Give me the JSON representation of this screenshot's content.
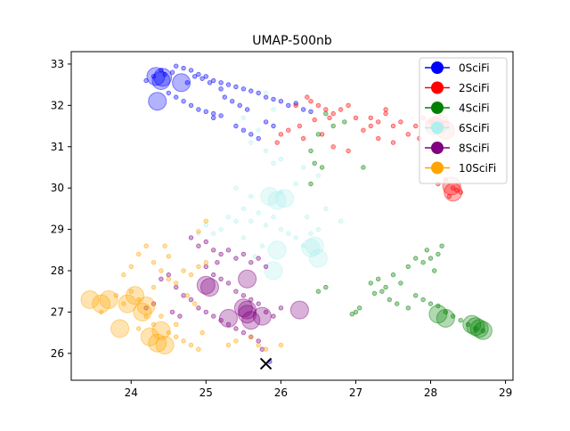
{
  "chart_data": {
    "type": "scatter",
    "title": "UMAP-500nb",
    "xlabel": "",
    "ylabel": "",
    "xlim": [
      23.2,
      29.1
    ],
    "ylim": [
      25.35,
      33.3
    ],
    "xticks": [
      24,
      25,
      26,
      27,
      28,
      29
    ],
    "yticks": [
      26,
      27,
      28,
      29,
      30,
      31,
      32,
      33
    ],
    "grid": false,
    "legend_position": "top-right",
    "series": [
      {
        "name": "0SciFi",
        "color": "#0000ff",
        "points": [
          [
            24.6,
            32.95
          ],
          [
            24.7,
            32.9
          ],
          [
            24.8,
            32.85
          ],
          [
            24.9,
            32.75
          ],
          [
            25.0,
            32.7
          ],
          [
            25.1,
            32.6
          ],
          [
            25.2,
            32.55
          ],
          [
            25.3,
            32.5
          ],
          [
            25.4,
            32.45
          ],
          [
            25.5,
            32.4
          ],
          [
            25.6,
            32.35
          ],
          [
            25.7,
            32.3
          ],
          [
            25.8,
            32.2
          ],
          [
            25.9,
            32.15
          ],
          [
            26.0,
            32.1
          ],
          [
            26.1,
            32.0
          ],
          [
            24.5,
            32.3
          ],
          [
            24.6,
            32.2
          ],
          [
            24.7,
            32.1
          ],
          [
            24.8,
            32.0
          ],
          [
            24.9,
            31.9
          ],
          [
            25.0,
            31.85
          ],
          [
            25.1,
            31.8
          ],
          [
            25.2,
            31.75
          ],
          [
            25.25,
            32.2
          ],
          [
            25.35,
            32.1
          ],
          [
            25.45,
            32.0
          ],
          [
            25.55,
            31.9
          ],
          [
            25.1,
            31.7
          ],
          [
            25.4,
            31.5
          ],
          [
            25.5,
            31.4
          ],
          [
            25.6,
            31.3
          ],
          [
            25.7,
            31.2
          ],
          [
            25.2,
            32.4
          ],
          [
            25.05,
            32.55
          ],
          [
            24.95,
            32.65
          ],
          [
            24.85,
            32.7
          ],
          [
            24.75,
            32.55
          ],
          [
            24.55,
            32.8
          ],
          [
            24.45,
            32.75
          ],
          [
            24.4,
            32.85
          ],
          [
            24.3,
            32.7
          ],
          [
            24.2,
            32.6
          ],
          [
            26.3,
            31.9
          ],
          [
            26.2,
            32.05
          ],
          [
            26.4,
            31.85
          ],
          [
            25.8,
            31.6
          ],
          [
            25.9,
            31.5
          ],
          [
            25.85,
            25.8
          ]
        ],
        "big": [
          [
            24.33,
            32.7
          ],
          [
            24.4,
            32.6
          ],
          [
            24.67,
            32.55
          ],
          [
            24.35,
            32.1
          ],
          [
            24.42,
            32.68
          ]
        ]
      },
      {
        "name": "2SciFi",
        "color": "#ff0000",
        "points": [
          [
            26.2,
            32.0
          ],
          [
            26.4,
            32.1
          ],
          [
            26.5,
            32.0
          ],
          [
            26.6,
            31.9
          ],
          [
            26.7,
            31.8
          ],
          [
            26.8,
            31.9
          ],
          [
            26.9,
            32.0
          ],
          [
            27.0,
            31.7
          ],
          [
            26.35,
            32.2
          ],
          [
            26.25,
            31.5
          ],
          [
            26.1,
            31.4
          ],
          [
            26.3,
            31.2
          ],
          [
            26.55,
            31.3
          ],
          [
            26.7,
            31.0
          ],
          [
            26.9,
            30.9
          ],
          [
            27.2,
            31.5
          ],
          [
            27.3,
            31.6
          ],
          [
            27.4,
            31.8
          ],
          [
            27.5,
            31.5
          ],
          [
            27.6,
            31.6
          ],
          [
            27.7,
            31.3
          ],
          [
            27.8,
            31.5
          ],
          [
            27.9,
            31.7
          ],
          [
            28.0,
            31.6
          ],
          [
            27.85,
            31.2
          ],
          [
            27.5,
            31.1
          ],
          [
            27.3,
            31.2
          ],
          [
            27.1,
            31.4
          ],
          [
            26.0,
            31.3
          ],
          [
            25.95,
            31.1
          ],
          [
            26.45,
            31.65
          ],
          [
            26.65,
            31.7
          ],
          [
            28.2,
            30.2
          ],
          [
            28.3,
            30.0
          ],
          [
            28.4,
            29.9
          ],
          [
            28.1,
            30.1
          ],
          [
            28.25,
            29.8
          ],
          [
            28.35,
            29.95
          ],
          [
            27.4,
            31.9
          ],
          [
            27.2,
            31.7
          ]
        ],
        "big": [
          [
            28.05,
            31.5
          ],
          [
            28.2,
            31.4
          ],
          [
            28.3,
            29.9
          ],
          [
            28.28,
            30.05
          ],
          [
            28.12,
            31.55
          ]
        ]
      },
      {
        "name": "4SciFi",
        "color": "#008000",
        "points": [
          [
            26.6,
            31.8
          ],
          [
            26.7,
            31.5
          ],
          [
            26.85,
            31.6
          ],
          [
            26.5,
            31.3
          ],
          [
            26.4,
            30.9
          ],
          [
            26.45,
            30.6
          ],
          [
            26.4,
            30.1
          ],
          [
            26.55,
            30.5
          ],
          [
            27.1,
            30.5
          ],
          [
            26.5,
            27.5
          ],
          [
            26.6,
            27.6
          ],
          [
            27.0,
            27.0
          ],
          [
            26.95,
            26.95
          ],
          [
            27.05,
            27.1
          ],
          [
            27.2,
            27.7
          ],
          [
            27.3,
            27.8
          ],
          [
            27.4,
            27.6
          ],
          [
            27.5,
            27.9
          ],
          [
            27.6,
            27.7
          ],
          [
            27.7,
            28.1
          ],
          [
            27.8,
            28.3
          ],
          [
            27.9,
            28.2
          ],
          [
            28.0,
            28.3
          ],
          [
            28.1,
            28.4
          ],
          [
            28.15,
            28.6
          ],
          [
            27.45,
            27.3
          ],
          [
            27.55,
            27.2
          ],
          [
            27.7,
            27.1
          ],
          [
            27.8,
            27.4
          ],
          [
            27.9,
            27.3
          ],
          [
            28.0,
            27.2
          ],
          [
            27.35,
            27.5
          ],
          [
            27.25,
            27.45
          ],
          [
            28.05,
            28.0
          ],
          [
            28.1,
            27.15
          ],
          [
            28.2,
            27.0
          ],
          [
            28.3,
            26.9
          ],
          [
            28.4,
            26.8
          ],
          [
            28.5,
            26.7
          ],
          [
            28.6,
            26.6
          ],
          [
            28.7,
            26.55
          ],
          [
            27.95,
            28.5
          ]
        ],
        "big": [
          [
            28.1,
            26.95
          ],
          [
            28.2,
            26.85
          ],
          [
            28.6,
            26.65
          ],
          [
            28.65,
            26.6
          ],
          [
            28.7,
            26.55
          ],
          [
            28.55,
            26.7
          ]
        ]
      },
      {
        "name": "6SciFi",
        "color": "#aff0ee",
        "points": [
          [
            25.8,
            32.3
          ],
          [
            25.9,
            31.9
          ],
          [
            25.5,
            31.7
          ],
          [
            25.7,
            31.4
          ],
          [
            25.6,
            31.1
          ],
          [
            25.8,
            30.9
          ],
          [
            25.9,
            30.6
          ],
          [
            26.0,
            30.7
          ],
          [
            26.3,
            30.5
          ],
          [
            26.5,
            30.3
          ],
          [
            26.2,
            30.1
          ],
          [
            26.0,
            29.9
          ],
          [
            25.6,
            29.8
          ],
          [
            25.4,
            30.0
          ],
          [
            25.5,
            29.5
          ],
          [
            25.3,
            29.3
          ],
          [
            25.4,
            29.2
          ],
          [
            25.2,
            29.0
          ],
          [
            25.1,
            28.9
          ],
          [
            25.0,
            29.1
          ],
          [
            24.9,
            28.9
          ],
          [
            25.6,
            29.2
          ],
          [
            25.8,
            29.1
          ],
          [
            26.0,
            29.0
          ],
          [
            26.1,
            28.9
          ],
          [
            26.2,
            28.8
          ],
          [
            26.3,
            28.6
          ],
          [
            26.4,
            28.9
          ],
          [
            26.6,
            29.5
          ],
          [
            26.8,
            29.2
          ],
          [
            25.7,
            29.4
          ],
          [
            25.9,
            29.3
          ],
          [
            25.5,
            28.8
          ],
          [
            26.5,
            29.0
          ],
          [
            25.75,
            28.6
          ],
          [
            25.65,
            28.35
          ],
          [
            26.35,
            29.3
          ]
        ],
        "big": [
          [
            25.85,
            29.8
          ],
          [
            25.95,
            29.7
          ],
          [
            26.05,
            29.75
          ],
          [
            25.95,
            28.5
          ],
          [
            25.9,
            28.0
          ],
          [
            26.4,
            28.55
          ],
          [
            26.5,
            28.3
          ],
          [
            26.45,
            28.6
          ]
        ]
      },
      {
        "name": "8SciFi",
        "color": "#800080",
        "points": [
          [
            24.8,
            28.8
          ],
          [
            24.9,
            28.6
          ],
          [
            25.0,
            28.7
          ],
          [
            25.1,
            28.5
          ],
          [
            25.2,
            28.4
          ],
          [
            25.3,
            28.5
          ],
          [
            25.4,
            28.3
          ],
          [
            25.5,
            28.4
          ],
          [
            25.6,
            28.2
          ],
          [
            25.7,
            28.3
          ],
          [
            25.8,
            28.1
          ],
          [
            25.0,
            28.1
          ],
          [
            25.1,
            27.9
          ],
          [
            25.2,
            27.8
          ],
          [
            25.3,
            27.7
          ],
          [
            25.4,
            27.5
          ],
          [
            25.5,
            27.4
          ],
          [
            25.6,
            27.3
          ],
          [
            25.7,
            27.2
          ],
          [
            25.8,
            27.0
          ],
          [
            25.9,
            26.9
          ],
          [
            24.6,
            27.6
          ],
          [
            24.7,
            27.4
          ],
          [
            24.8,
            27.3
          ],
          [
            24.9,
            27.1
          ],
          [
            25.0,
            27.0
          ],
          [
            25.1,
            26.9
          ],
          [
            25.2,
            26.8
          ],
          [
            25.3,
            26.7
          ],
          [
            25.4,
            26.6
          ],
          [
            25.5,
            26.5
          ],
          [
            25.6,
            26.4
          ],
          [
            25.7,
            26.3
          ],
          [
            25.75,
            26.1
          ],
          [
            24.4,
            27.8
          ],
          [
            24.5,
            27.9
          ],
          [
            24.55,
            27.0
          ],
          [
            24.65,
            26.9
          ],
          [
            24.3,
            27.2
          ],
          [
            24.2,
            27.1
          ],
          [
            26.0,
            27.1
          ],
          [
            25.15,
            28.2
          ]
        ],
        "big": [
          [
            25.0,
            27.65
          ],
          [
            25.05,
            27.6
          ],
          [
            25.3,
            26.85
          ],
          [
            25.55,
            27.8
          ],
          [
            25.5,
            27.1
          ],
          [
            25.55,
            26.95
          ],
          [
            25.6,
            26.8
          ],
          [
            25.55,
            27.05
          ],
          [
            25.75,
            26.9
          ],
          [
            26.25,
            27.05
          ]
        ]
      },
      {
        "name": "10SciFi",
        "color": "#ffa500",
        "points": [
          [
            24.1,
            28.4
          ],
          [
            24.2,
            28.6
          ],
          [
            24.3,
            28.2
          ],
          [
            24.4,
            28.0
          ],
          [
            24.0,
            28.1
          ],
          [
            23.9,
            27.9
          ],
          [
            24.5,
            27.8
          ],
          [
            24.6,
            27.7
          ],
          [
            24.7,
            28.0
          ],
          [
            24.8,
            27.9
          ],
          [
            24.9,
            28.1
          ],
          [
            25.0,
            29.2
          ],
          [
            24.9,
            28.95
          ],
          [
            25.0,
            28.2
          ],
          [
            24.5,
            26.5
          ],
          [
            24.6,
            26.4
          ],
          [
            24.7,
            26.3
          ],
          [
            24.8,
            26.2
          ],
          [
            24.9,
            26.1
          ],
          [
            24.95,
            26.5
          ],
          [
            25.3,
            26.2
          ],
          [
            25.4,
            26.3
          ],
          [
            25.6,
            26.4
          ],
          [
            25.7,
            26.2
          ],
          [
            25.8,
            26.1
          ],
          [
            26.0,
            26.2
          ],
          [
            23.8,
            27.4
          ],
          [
            23.9,
            27.2
          ],
          [
            24.0,
            27.5
          ],
          [
            24.1,
            27.3
          ],
          [
            24.2,
            26.9
          ],
          [
            24.3,
            26.7
          ],
          [
            24.4,
            26.9
          ],
          [
            24.3,
            27.6
          ],
          [
            24.45,
            28.6
          ],
          [
            24.5,
            28.35
          ],
          [
            24.1,
            26.6
          ],
          [
            24.6,
            26.7
          ],
          [
            24.75,
            27.4
          ],
          [
            24.85,
            27.2
          ],
          [
            23.6,
            27.0
          ]
        ],
        "big": [
          [
            23.45,
            27.3
          ],
          [
            23.6,
            27.2
          ],
          [
            23.95,
            27.2
          ],
          [
            24.05,
            27.4
          ],
          [
            24.15,
            27.0
          ],
          [
            24.2,
            27.15
          ],
          [
            24.25,
            26.4
          ],
          [
            24.35,
            26.25
          ],
          [
            24.45,
            26.2
          ],
          [
            23.85,
            26.6
          ],
          [
            24.4,
            26.55
          ],
          [
            23.7,
            27.3
          ]
        ]
      }
    ],
    "marker": {
      "x": 25.8,
      "y": 25.75,
      "symbol": "x",
      "color": "#000000"
    }
  }
}
